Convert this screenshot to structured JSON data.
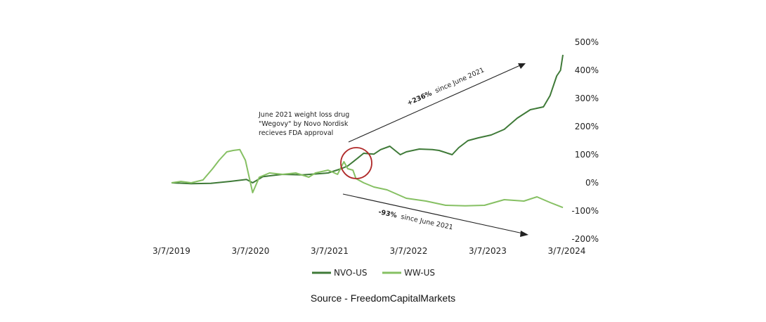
{
  "chart_data": {
    "type": "line",
    "x_ticks": [
      "3/7/2019",
      "3/7/2020",
      "3/7/2021",
      "3/7/2022",
      "3/7/2023",
      "3/7/2024"
    ],
    "y_ticks": [
      "500%",
      "400%",
      "300%",
      "200%",
      "100%",
      "0%",
      "-100%",
      "-200%"
    ],
    "ylim": [
      -200,
      500
    ],
    "xlim": [
      "2019-03-07",
      "2024-03-07"
    ],
    "grid": false,
    "legend_position": "bottom-center",
    "series": [
      {
        "name": "NVO-US",
        "color": "#3f7a38",
        "points": [
          [
            "2019-03-07",
            0
          ],
          [
            "2019-06-07",
            -3
          ],
          [
            "2019-09-07",
            -2
          ],
          [
            "2019-12-07",
            5
          ],
          [
            "2020-02-20",
            12
          ],
          [
            "2020-03-20",
            0
          ],
          [
            "2020-05-07",
            22
          ],
          [
            "2020-08-07",
            30
          ],
          [
            "2020-11-07",
            28
          ],
          [
            "2021-02-07",
            33
          ],
          [
            "2021-03-07",
            35
          ],
          [
            "2021-05-07",
            50
          ],
          [
            "2021-06-07",
            60
          ],
          [
            "2021-07-07",
            78
          ],
          [
            "2021-08-20",
            105
          ],
          [
            "2021-10-07",
            102
          ],
          [
            "2021-11-07",
            118
          ],
          [
            "2021-12-20",
            130
          ],
          [
            "2022-02-07",
            100
          ],
          [
            "2022-03-07",
            110
          ],
          [
            "2022-05-07",
            120
          ],
          [
            "2022-07-07",
            118
          ],
          [
            "2022-08-07",
            115
          ],
          [
            "2022-10-07",
            100
          ],
          [
            "2022-11-07",
            125
          ],
          [
            "2022-12-20",
            150
          ],
          [
            "2023-02-07",
            160
          ],
          [
            "2023-04-07",
            170
          ],
          [
            "2023-06-07",
            190
          ],
          [
            "2023-08-07",
            230
          ],
          [
            "2023-10-07",
            260
          ],
          [
            "2023-12-07",
            270
          ],
          [
            "2024-01-07",
            310
          ],
          [
            "2024-02-07",
            380
          ],
          [
            "2024-02-25",
            400
          ],
          [
            "2024-03-07",
            455
          ]
        ]
      },
      {
        "name": "WW-US",
        "color": "#86c063",
        "points": [
          [
            "2019-03-07",
            0
          ],
          [
            "2019-04-20",
            5
          ],
          [
            "2019-06-07",
            0
          ],
          [
            "2019-08-01",
            10
          ],
          [
            "2019-09-15",
            50
          ],
          [
            "2019-10-15",
            80
          ],
          [
            "2019-11-20",
            110
          ],
          [
            "2019-12-20",
            115
          ],
          [
            "2020-01-20",
            118
          ],
          [
            "2020-02-15",
            80
          ],
          [
            "2020-03-20",
            -35
          ],
          [
            "2020-04-20",
            20
          ],
          [
            "2020-06-07",
            35
          ],
          [
            "2020-08-07",
            30
          ],
          [
            "2020-10-07",
            35
          ],
          [
            "2020-12-07",
            20
          ],
          [
            "2021-01-07",
            35
          ],
          [
            "2021-03-07",
            45
          ],
          [
            "2021-04-20",
            30
          ],
          [
            "2021-05-20",
            75
          ],
          [
            "2021-06-07",
            50
          ],
          [
            "2021-07-01",
            45
          ],
          [
            "2021-07-15",
            15
          ],
          [
            "2021-08-20",
            0
          ],
          [
            "2021-10-07",
            -15
          ],
          [
            "2021-12-07",
            -25
          ],
          [
            "2022-03-07",
            -55
          ],
          [
            "2022-06-07",
            -65
          ],
          [
            "2022-09-07",
            -80
          ],
          [
            "2022-12-07",
            -82
          ],
          [
            "2023-03-07",
            -80
          ],
          [
            "2023-06-07",
            -60
          ],
          [
            "2023-09-07",
            -65
          ],
          [
            "2023-11-07",
            -50
          ],
          [
            "2024-01-07",
            -70
          ],
          [
            "2024-03-07",
            -88
          ]
        ]
      }
    ],
    "annotations": {
      "event_lines": [
        "June 2021 weight loss drug",
        "\"Wegovy\" by Novo Nordisk",
        "recieves FDA approval"
      ],
      "up_label": "+236%",
      "up_suffix": "since June 2021",
      "down_label": "-93%",
      "down_suffix": "since June 2021",
      "circle_color": "#b02a2a"
    }
  },
  "source": "Source - FreedomCapitalMarkets"
}
